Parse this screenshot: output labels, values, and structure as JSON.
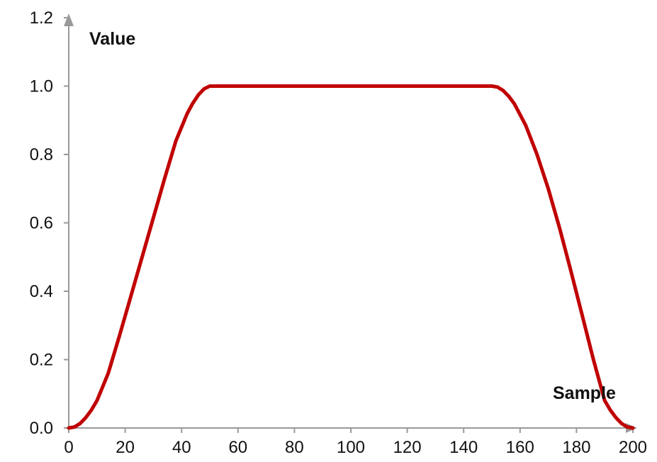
{
  "chart_data": {
    "type": "line",
    "title": "",
    "xlabel": "Sample",
    "ylabel": "Value",
    "xlim": [
      0,
      200
    ],
    "ylim": [
      0,
      1.2
    ],
    "x_ticks": [
      "0",
      "20",
      "40",
      "60",
      "80",
      "100",
      "120",
      "140",
      "160",
      "180",
      "200"
    ],
    "y_ticks": [
      "0.0",
      "0.2",
      "0.4",
      "0.6",
      "0.8",
      "1.0",
      "1.2"
    ],
    "x_tick_values": [
      0,
      20,
      40,
      60,
      80,
      100,
      120,
      140,
      160,
      180,
      200
    ],
    "y_tick_values": [
      0,
      0.2,
      0.4,
      0.6,
      0.8,
      1.0,
      1.2
    ],
    "grid": false,
    "series": [
      {
        "color": "#c00000",
        "x": [
          0,
          2,
          4,
          6,
          8,
          10,
          14,
          18,
          22,
          26,
          30,
          34,
          38,
          42,
          44,
          46,
          48,
          50,
          60,
          80,
          100,
          120,
          140,
          150,
          152,
          154,
          156,
          158,
          162,
          166,
          170,
          174,
          178,
          182,
          186,
          190,
          192,
          194,
          196,
          198,
          200
        ],
        "y": [
          0.0,
          0.003,
          0.013,
          0.03,
          0.052,
          0.08,
          0.16,
          0.27,
          0.385,
          0.5,
          0.615,
          0.73,
          0.84,
          0.92,
          0.95,
          0.975,
          0.992,
          1.0,
          1.0,
          1.0,
          1.0,
          1.0,
          1.0,
          1.0,
          0.997,
          0.987,
          0.97,
          0.948,
          0.885,
          0.8,
          0.7,
          0.585,
          0.46,
          0.33,
          0.2,
          0.08,
          0.052,
          0.03,
          0.013,
          0.003,
          0.0
        ]
      }
    ],
    "axis_color": "#999999"
  }
}
